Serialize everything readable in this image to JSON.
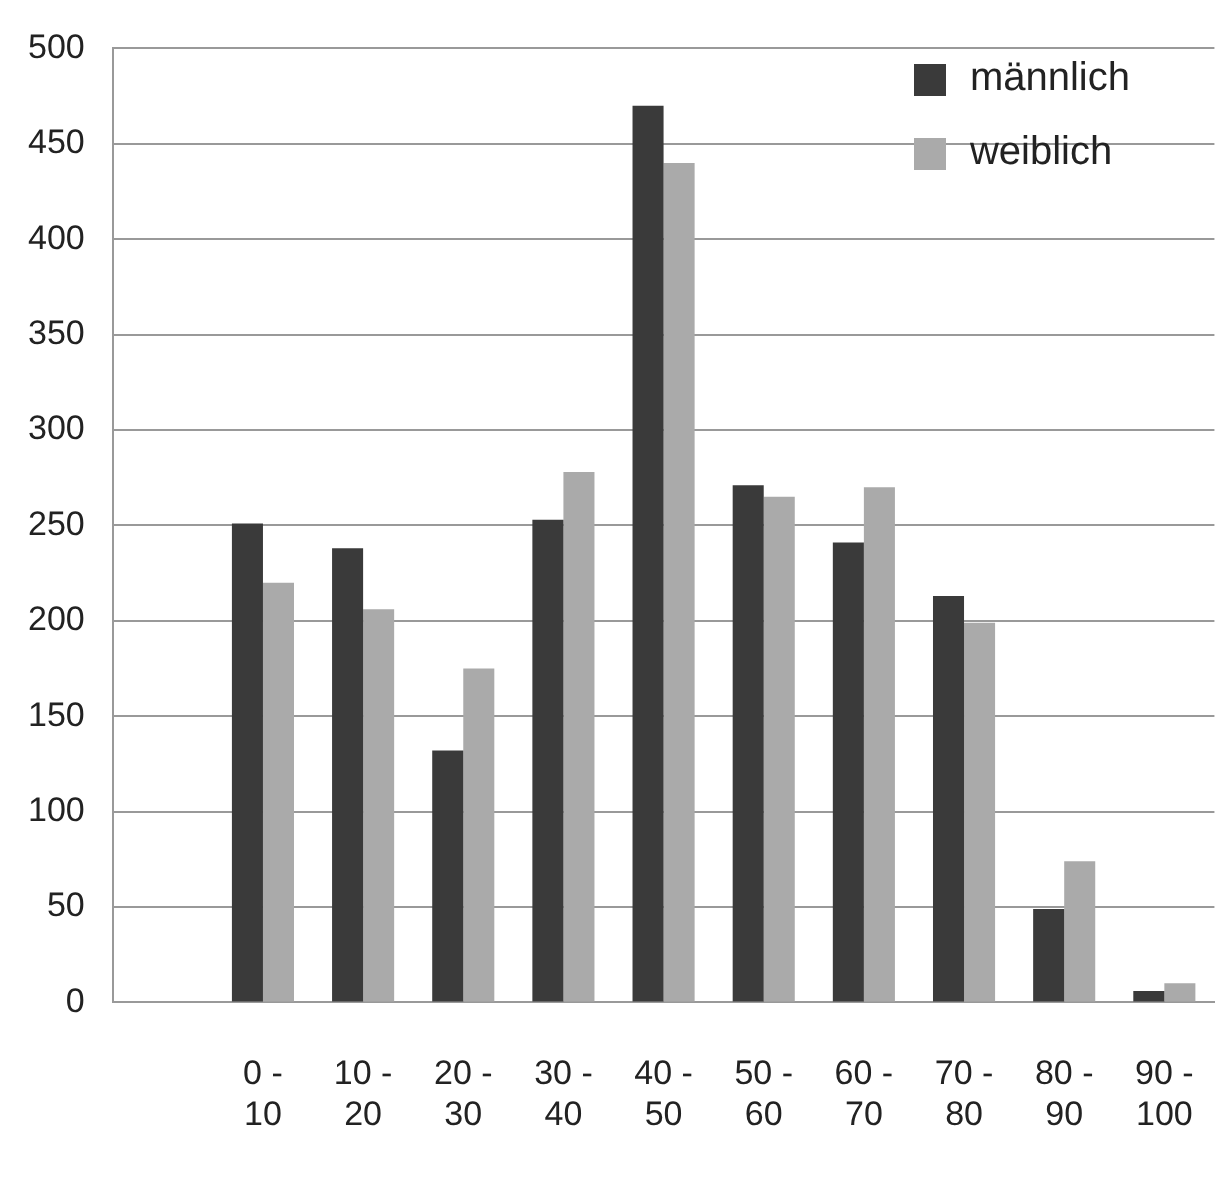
{
  "chart_data": {
    "type": "bar",
    "categories": [
      null,
      "0 - 10",
      "10 - 20",
      "20 - 30",
      "30 - 40",
      "40 - 50",
      "50 - 60",
      "60 - 70",
      "70 - 80",
      "80 - 90",
      "90 - 100"
    ],
    "series": [
      {
        "name": "männlich",
        "color": "#3a3a3a",
        "values": [
          null,
          251,
          238,
          132,
          253,
          470,
          271,
          241,
          213,
          49,
          6
        ]
      },
      {
        "name": "weiblich",
        "color": "#aaaaaa",
        "values": [
          null,
          220,
          206,
          175,
          278,
          440,
          265,
          270,
          199,
          74,
          10
        ]
      }
    ],
    "ylim": [
      0,
      500
    ],
    "yticks": [
      0,
      50,
      100,
      150,
      200,
      250,
      300,
      350,
      400,
      450,
      500
    ],
    "grid": "y",
    "legend": "top right"
  }
}
